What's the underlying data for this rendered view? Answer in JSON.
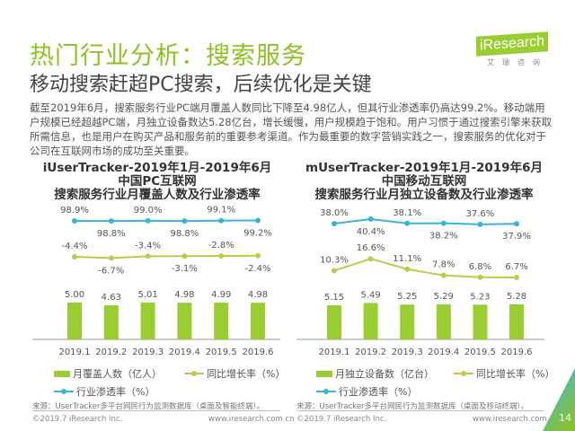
{
  "header": {
    "title": "热门行业分析：搜索服务",
    "subtitle": "移动搜索赶超PC搜索，后续优化是关键",
    "logo_text": "iResearch",
    "logo_sub": "艾瑞咨询"
  },
  "intro": "截至2019年6月，搜索服务行业PC端月覆盖人数同比下降至4.98亿人，但其行业渗透率仍高达99.2%。移动端用户规模已经超越PC端，月独立设备数达5.28亿台，增长缓慢，用户规模趋于饱和。用户习惯于通过搜索引擎来获取所需信息，也是用户在购买产品和服务前的重要参考渠道。作为最重要的数字营销实践之一，搜索服务的优化对于公司在互联网市场的成功至关重要。",
  "colors": {
    "bar": "#9acd32",
    "growth": "#b5cf4a",
    "penetration": "#3bb5d0",
    "title": "#8dc21f"
  },
  "chart_data": [
    {
      "type": "bar+line",
      "title": [
        "iUserTracker-2019年1月-2019年6月",
        "中国PC互联网",
        "搜索服务行业月覆盖人数及行业渗透率"
      ],
      "categories": [
        "2019.1",
        "2019.2",
        "2019.3",
        "2019.4",
        "2019.5",
        "2019.6"
      ],
      "series": [
        {
          "name": "月覆盖人数（亿人）",
          "type": "bar",
          "values": [
            5.0,
            4.63,
            5.01,
            4.98,
            4.99,
            4.98
          ],
          "labels": [
            "5.00",
            "4.63",
            "5.01",
            "4.98",
            "4.99",
            "4.98"
          ]
        },
        {
          "name": "同比增长率（%）",
          "type": "line",
          "values": [
            -4.4,
            -6.7,
            -3.4,
            -3.1,
            -2.8,
            -2.4
          ],
          "labels": [
            "-4.4%",
            "-6.7%",
            "-3.4%",
            "-3.1%",
            "-2.8%",
            "-2.4%"
          ]
        },
        {
          "name": "行业渗透率（%）",
          "type": "line",
          "values": [
            98.9,
            98.8,
            99.0,
            98.8,
            99.1,
            99.2
          ],
          "labels": [
            "98.9%",
            "98.8%",
            "99.0%",
            "98.8%",
            "99.1%",
            "99.2%"
          ]
        }
      ],
      "legend": "bottom",
      "grid": false,
      "source": "来源：UserTracker多平台网民行为监测数据库（桌面及智能终端）。"
    },
    {
      "type": "bar+line",
      "title": [
        "mUserTracker-2019年1月-2019年6月",
        "中国移动互联网",
        "搜索服务行业月独立设备数及行业渗透率"
      ],
      "categories": [
        "2019.1",
        "2019.2",
        "2019.3",
        "2019.4",
        "2019.5",
        "2019.6"
      ],
      "series": [
        {
          "name": "月独立设备数（亿台）",
          "type": "bar",
          "values": [
            5.15,
            5.49,
            5.25,
            5.29,
            5.23,
            5.28
          ],
          "labels": [
            "5.15",
            "5.49",
            "5.25",
            "5.29",
            "5.23",
            "5.28"
          ]
        },
        {
          "name": "同比增长率（%）",
          "type": "line",
          "values": [
            10.3,
            16.6,
            11.1,
            7.8,
            6.8,
            6.7
          ],
          "labels": [
            "10.3%",
            "16.6%",
            "11.1%",
            "7.8%",
            "6.8%",
            "6.7%"
          ]
        },
        {
          "name": "行业渗透率（%）",
          "type": "line",
          "values": [
            38.0,
            40.4,
            38.1,
            38.2,
            37.6,
            37.9
          ],
          "labels": [
            "38.0%",
            "40.4%",
            "38.1%",
            "38.2%",
            "37.6%",
            "37.9%"
          ]
        }
      ],
      "legend": "bottom",
      "grid": false,
      "source": "来源：UserTracker多平台网民行为监测数据库（桌面及移动终端）。"
    }
  ],
  "footer": {
    "copyright": "©2019.7 iResearch Inc.",
    "url": "www.iresearch.com.cn",
    "page": "14"
  }
}
